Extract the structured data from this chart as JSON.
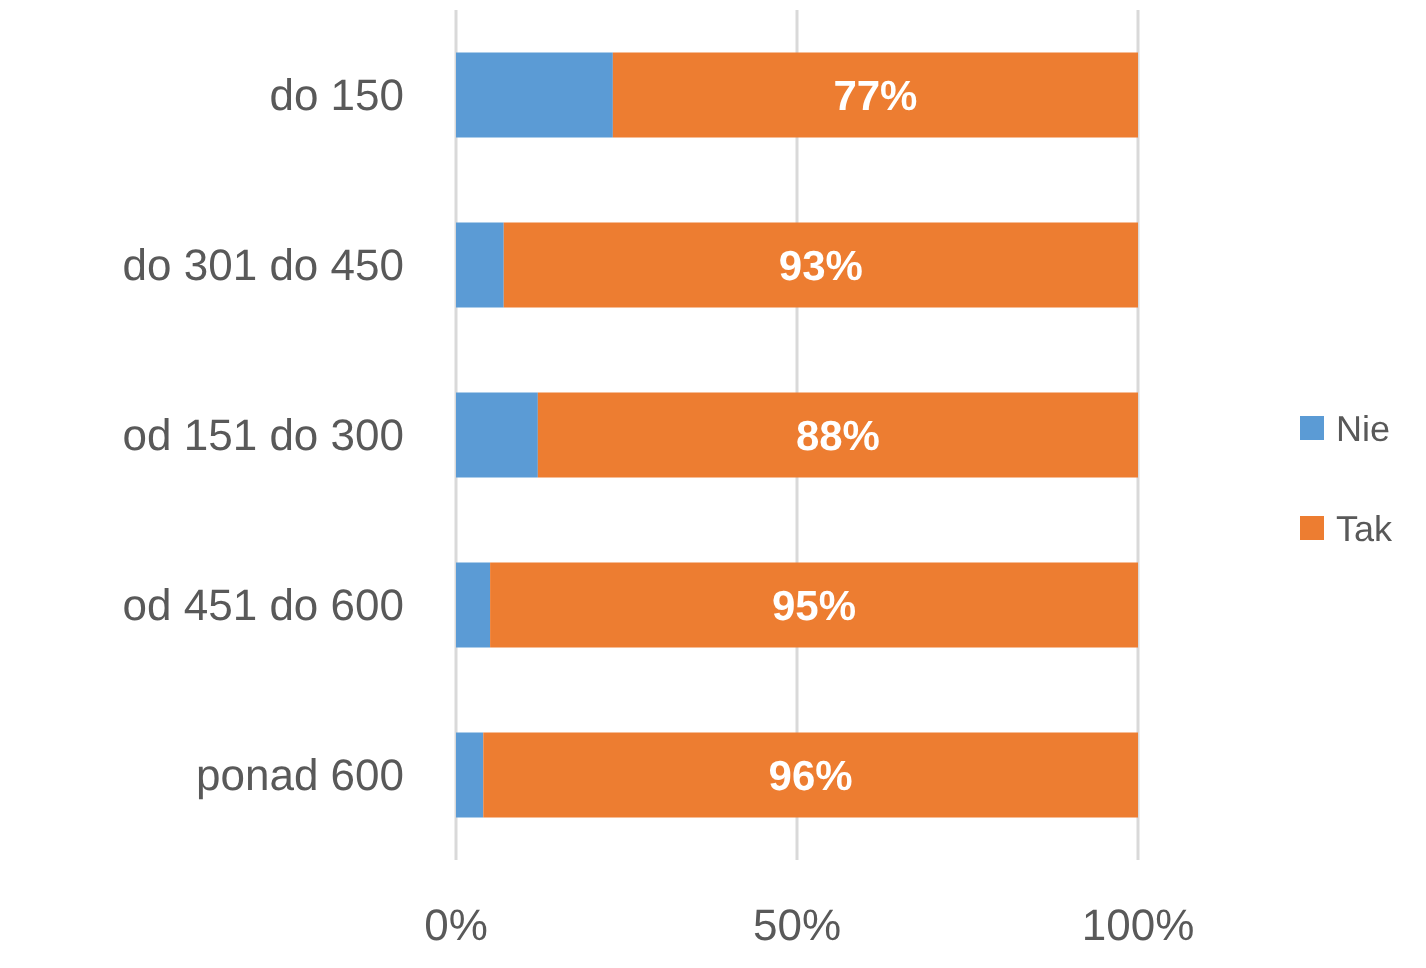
{
  "chart_data": {
    "type": "bar",
    "orientation": "horizontal",
    "stacked": true,
    "categories": [
      "do 150",
      "do 301 do 450",
      "od 151 do 300",
      "od 451 do 600",
      "ponad 600"
    ],
    "series": [
      {
        "name": "Nie",
        "color": "#5b9bd5",
        "values": [
          23,
          7,
          12,
          5,
          4
        ]
      },
      {
        "name": "Tak",
        "color": "#ed7d31",
        "values": [
          77,
          93,
          88,
          95,
          96
        ],
        "value_labels": [
          "77%",
          "93%",
          "88%",
          "95%",
          "96%"
        ]
      }
    ],
    "xlim": [
      0,
      100
    ],
    "xticks": [
      {
        "value": 0,
        "label": "0%"
      },
      {
        "value": 50,
        "label": "50%"
      },
      {
        "value": 100,
        "label": "100%"
      }
    ],
    "grid": "x",
    "legend": "right"
  }
}
